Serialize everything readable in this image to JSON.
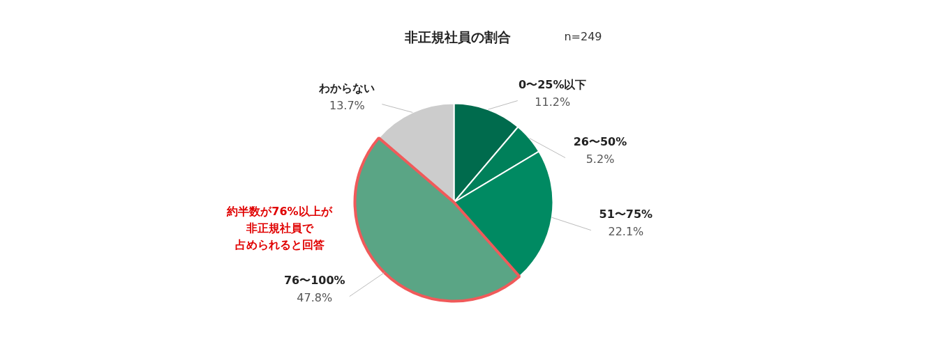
{
  "chart_data": {
    "type": "pie",
    "title": "非正規社員の割合",
    "subtitle": "n=249",
    "categories": [
      "0〜25%以下",
      "26〜50%",
      "51〜75%",
      "76〜100%",
      "わからない"
    ],
    "values": [
      11.2,
      5.2,
      22.1,
      47.8,
      13.7
    ],
    "colors": [
      "#006b4d",
      "#00805a",
      "#008a62",
      "#5aa585",
      "#cccccc"
    ],
    "annotations": [
      "約半数が76%以上が",
      "非正規社員で",
      "占められると回答"
    ],
    "value_labels": [
      "11.2%",
      "5.2%",
      "22.1%",
      "47.8%",
      "13.7%"
    ]
  }
}
